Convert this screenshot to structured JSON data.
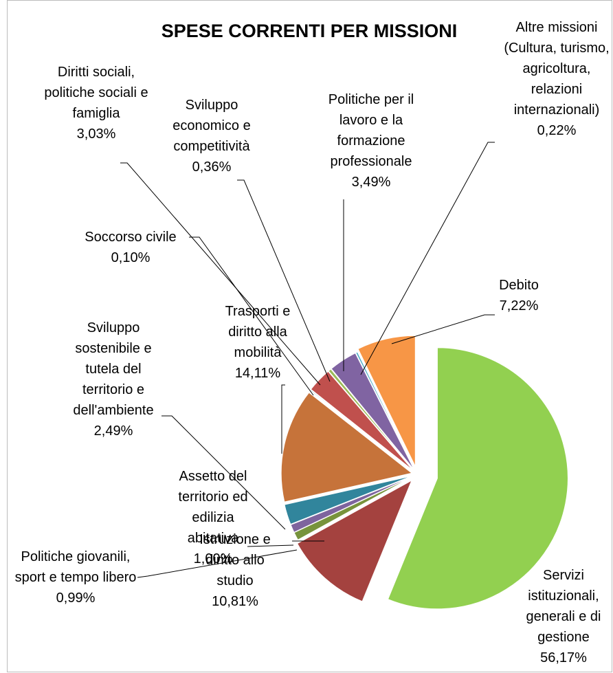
{
  "chart_data": {
    "type": "pie",
    "title": "SPESE CORRENTI PER MISSIONI",
    "categories": [
      "Servizi istituzionali, generali e di gestione",
      "Istruzione e diritto allo studio",
      "Politiche giovanili, sport e tempo libero",
      "Assetto del territorio ed edilizia abitativa",
      "Sviluppo sostenibile e tutela del territorio e dell'ambiente",
      "Trasporti e diritto alla mobilità",
      "Soccorso civile",
      "Diritti sociali, politiche sociali e famiglia",
      "Sviluppo economico e competitività",
      "Politiche per il lavoro e la formazione professionale",
      "Altre missioni (Cultura, turismo, agricoltura, relazioni internazionali)",
      "Debito"
    ],
    "values": [
      56.17,
      10.81,
      0.99,
      1.0,
      2.49,
      14.11,
      0.1,
      3.03,
      0.36,
      3.49,
      0.22,
      7.22
    ],
    "value_labels": [
      "56,17%",
      "10,81%",
      "0,99%",
      "1,00%",
      "2,49%",
      "14,11%",
      "0,10%",
      "3,03%",
      "0,36%",
      "3,49%",
      "0,22%",
      "7,22%"
    ],
    "colors": [
      "#92d050",
      "#a4423f",
      "#77933c",
      "#7e649e",
      "#31859c",
      "#c6733a",
      "#4bacc6",
      "#c0504d",
      "#9bbb59",
      "#8064a2",
      "#4bacc6",
      "#f79646"
    ]
  }
}
